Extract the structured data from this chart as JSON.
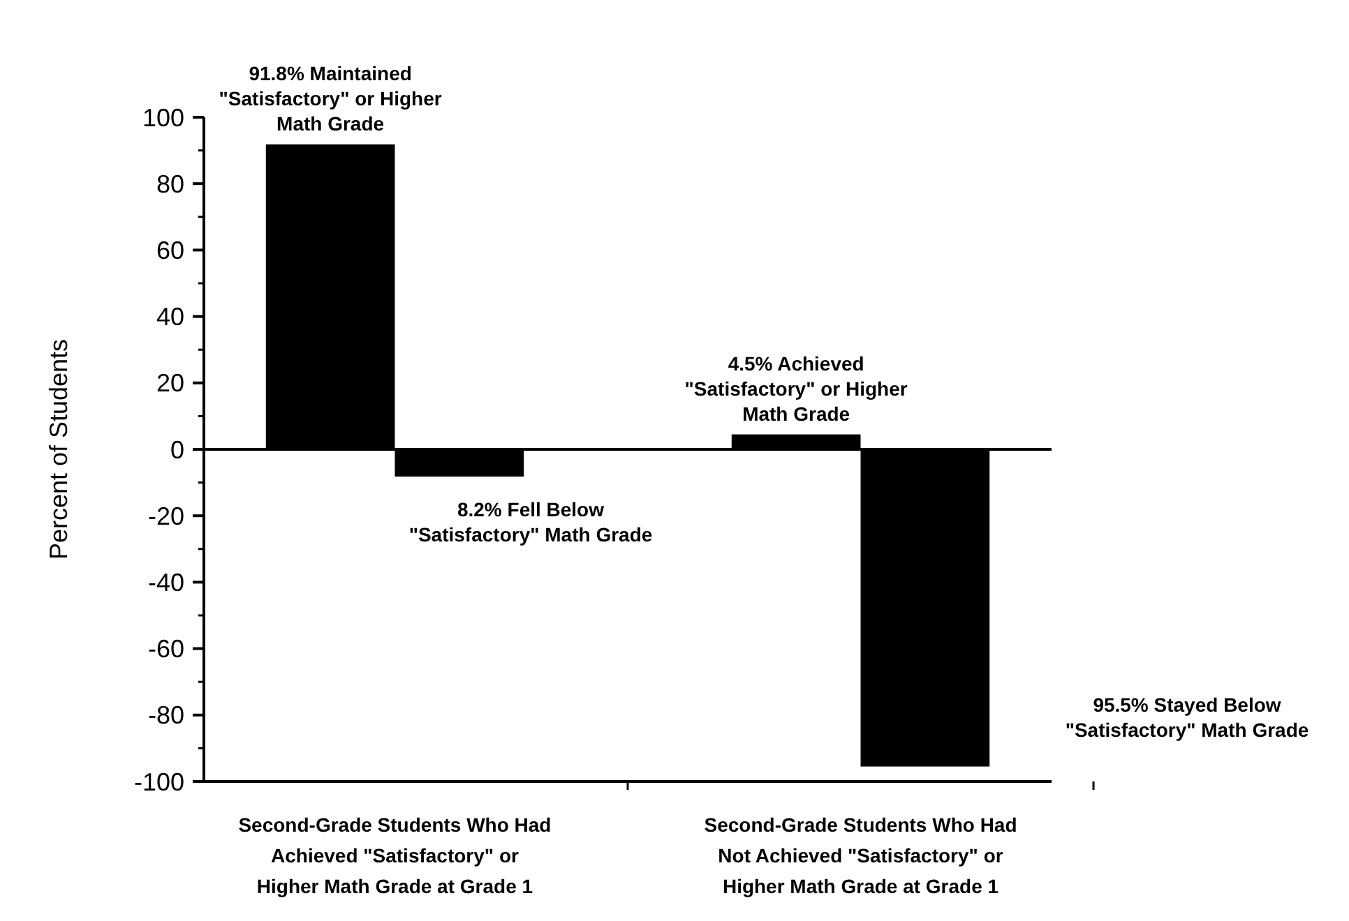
{
  "chart_data": {
    "type": "bar",
    "ylabel": "Percent of Students",
    "categories": [
      "Second-Grade Students Who Had Achieved \"Satisfactory\" or Higher Math Grade at Grade 1",
      "Second-Grade Students Who Had Not Achieved \"Satisfactory\" or Higher Math Grade at Grade 1"
    ],
    "series": [
      {
        "color": "#000000",
        "values": [
          91.8,
          4.5
        ]
      },
      {
        "color": "#000000",
        "values": [
          -8.2,
          -95.5
        ]
      }
    ],
    "ylim": [
      -100,
      100
    ],
    "yticks": [
      -100,
      -80,
      -60,
      -40,
      -20,
      0,
      20,
      40,
      60,
      80,
      100
    ],
    "annotations": [
      {
        "text": "91.8% Maintained \"Satisfactory\" or Higher Math Grade",
        "x": "Second-Grade Students Who Had Achieved \"Satisfactory\" or Higher Math Grade at Grade 1",
        "y": 91.8
      },
      "8.2% Fell Below \"Satisfactory\" Math Grade",
      {
        "text": "4.5% Achieved \"Satisfactory\" or Higher Math Grade",
        "x": "Second-Grade Students Who Had Not Achieved \"Satisfactory\" or Higher Math Grade at Grade 1",
        "y": 4.5
      },
      "95.5% Stayed Below \"Satisfactory\" Math Grade"
    ]
  }
}
